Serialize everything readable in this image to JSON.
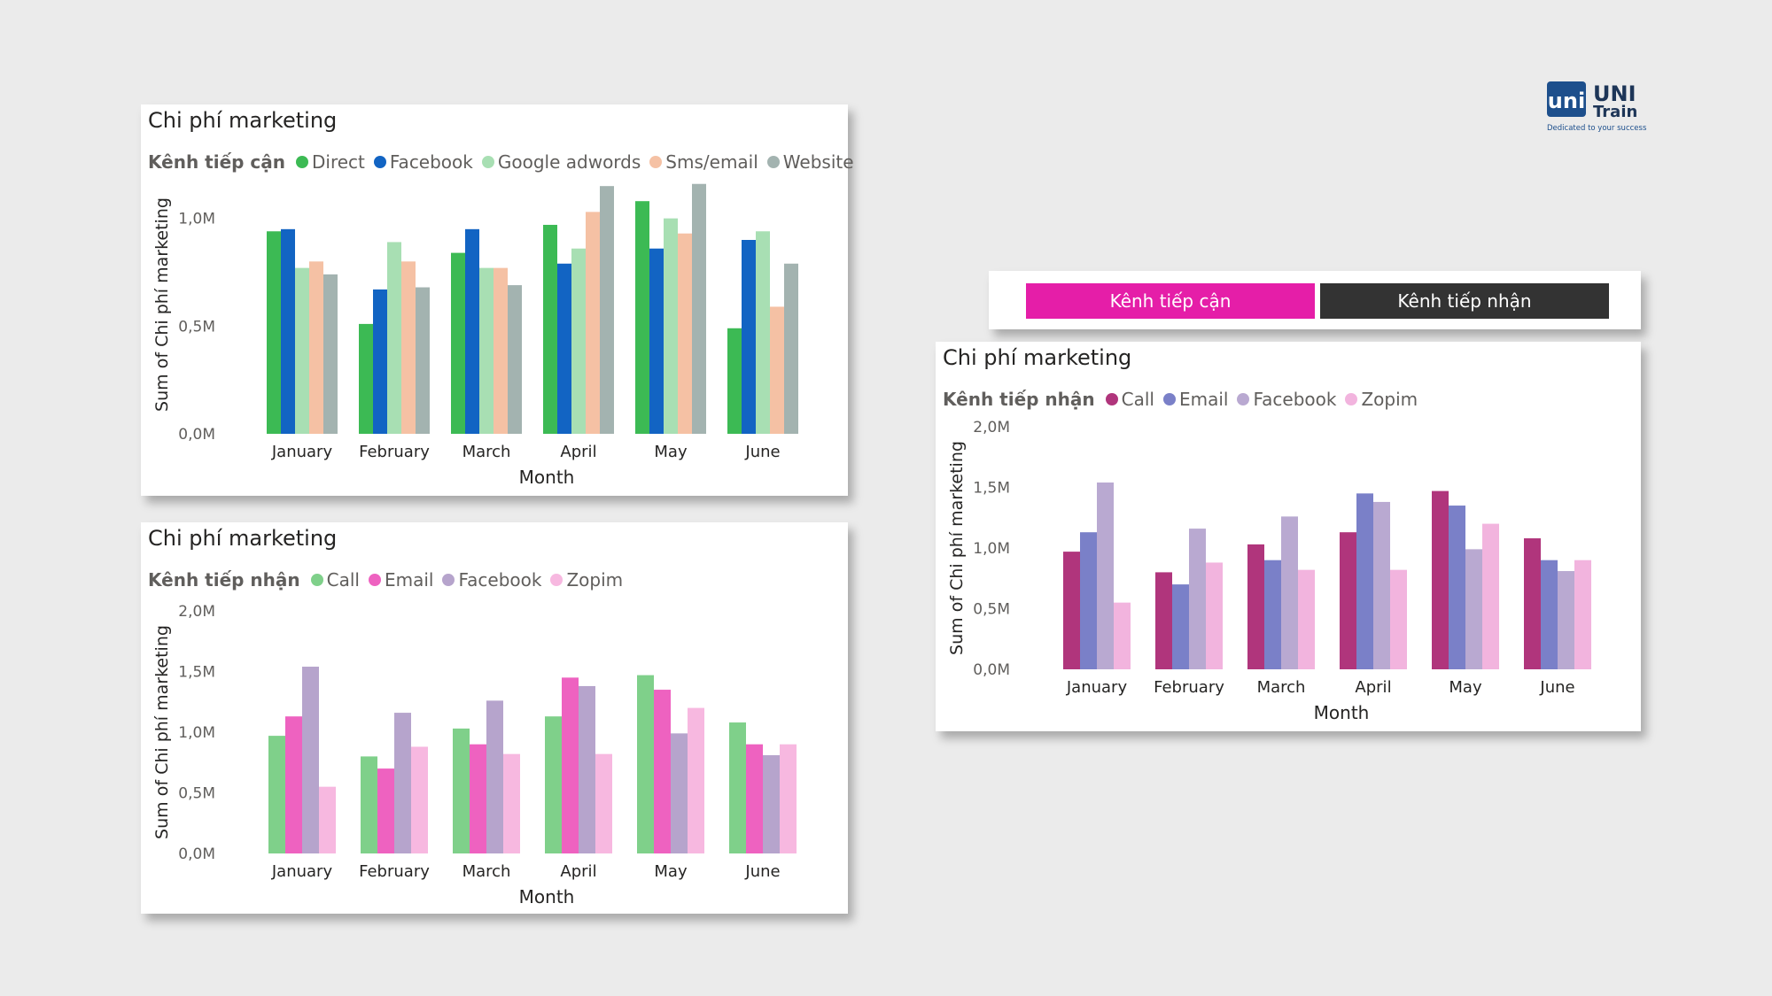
{
  "logo": {
    "mark": "uni",
    "line1": "UNI",
    "line2": "Train",
    "tagline": "Dedicated to your success"
  },
  "toggle": {
    "left_label": "Kênh tiếp cận",
    "right_label": "Kênh tiếp nhận",
    "left_color": "#e51ea8",
    "right_color": "#333333"
  },
  "chart_data": [
    {
      "type": "bar",
      "title": "Chi phí marketing",
      "legend_title": "Kênh tiếp cận",
      "xlabel": "Month",
      "ylabel": "Sum of Chi phí marketing",
      "ylim": [
        0,
        1200000
      ],
      "yticks": [
        {
          "value": 0,
          "label": "0,0M"
        },
        {
          "value": 500000,
          "label": "0,5M"
        },
        {
          "value": 1000000,
          "label": "1,0M"
        }
      ],
      "categories": [
        "January",
        "February",
        "March",
        "April",
        "May",
        "June"
      ],
      "series": [
        {
          "name": "Direct",
          "color": "#3cba54",
          "values": [
            940000,
            510000,
            840000,
            970000,
            1080000,
            490000
          ]
        },
        {
          "name": "Facebook",
          "color": "#1264c3",
          "values": [
            950000,
            670000,
            950000,
            790000,
            860000,
            900000
          ]
        },
        {
          "name": "Google adwords",
          "color": "#a8dfb3",
          "values": [
            770000,
            890000,
            770000,
            860000,
            1000000,
            940000
          ]
        },
        {
          "name": "Sms/email",
          "color": "#f5c1a4",
          "values": [
            800000,
            800000,
            770000,
            1030000,
            930000,
            590000
          ]
        },
        {
          "name": "Website",
          "color": "#a3b3b0",
          "values": [
            740000,
            680000,
            690000,
            1150000,
            1160000,
            790000
          ]
        }
      ]
    },
    {
      "type": "bar",
      "title": "Chi phí marketing",
      "legend_title": "Kênh tiếp nhận",
      "xlabel": "Month",
      "ylabel": "Sum of Chi phí marketing",
      "ylim": [
        0,
        2000000
      ],
      "yticks": [
        {
          "value": 0,
          "label": "0,0M"
        },
        {
          "value": 500000,
          "label": "0,5M"
        },
        {
          "value": 1000000,
          "label": "1,0M"
        },
        {
          "value": 1500000,
          "label": "1,5M"
        },
        {
          "value": 2000000,
          "label": "2,0M"
        }
      ],
      "categories": [
        "January",
        "February",
        "March",
        "April",
        "May",
        "June"
      ],
      "series": [
        {
          "name": "Call",
          "color": "#7fd08a",
          "values": [
            970000,
            800000,
            1030000,
            1130000,
            1470000,
            1080000
          ]
        },
        {
          "name": "Email",
          "color": "#ee62c0",
          "values": [
            1130000,
            700000,
            900000,
            1450000,
            1350000,
            900000
          ]
        },
        {
          "name": "Facebook",
          "color": "#b6a4cc",
          "values": [
            1540000,
            1160000,
            1260000,
            1380000,
            990000,
            810000
          ]
        },
        {
          "name": "Zopim",
          "color": "#f7b8e0",
          "values": [
            550000,
            880000,
            820000,
            820000,
            1200000,
            900000
          ]
        }
      ]
    },
    {
      "type": "bar",
      "title": "Chi phí marketing",
      "legend_title": "Kênh tiếp nhận",
      "xlabel": "Month",
      "ylabel": "Sum of Chi phí marketing",
      "ylim": [
        0,
        2000000
      ],
      "yticks": [
        {
          "value": 0,
          "label": "0,0M"
        },
        {
          "value": 500000,
          "label": "0,5M"
        },
        {
          "value": 1000000,
          "label": "1,0M"
        },
        {
          "value": 1500000,
          "label": "1,5M"
        },
        {
          "value": 2000000,
          "label": "2,0M"
        }
      ],
      "categories": [
        "January",
        "February",
        "March",
        "April",
        "May",
        "June"
      ],
      "series": [
        {
          "name": "Call",
          "color": "#b0357c",
          "values": [
            970000,
            800000,
            1030000,
            1130000,
            1470000,
            1080000
          ]
        },
        {
          "name": "Email",
          "color": "#7a80c8",
          "values": [
            1130000,
            700000,
            900000,
            1450000,
            1350000,
            900000
          ]
        },
        {
          "name": "Facebook",
          "color": "#b9a9d1",
          "values": [
            1540000,
            1160000,
            1260000,
            1380000,
            990000,
            810000
          ]
        },
        {
          "name": "Zopim",
          "color": "#f2b4de",
          "values": [
            550000,
            880000,
            820000,
            820000,
            1200000,
            900000
          ]
        }
      ]
    }
  ]
}
